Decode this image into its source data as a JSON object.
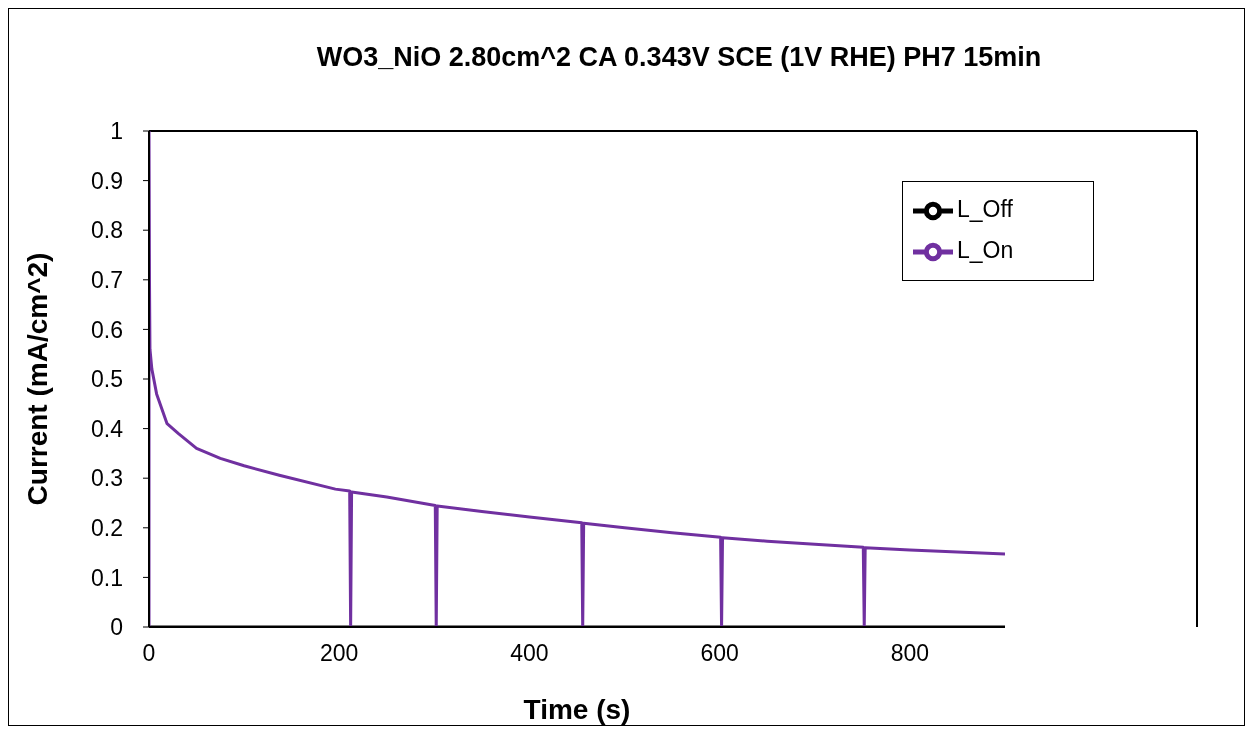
{
  "chart_data": {
    "type": "line",
    "title": "WO3_NiO 2.80cm^2 CA 0.343V SCE (1V RHE) PH7 15min",
    "xlabel": "Time (s)",
    "ylabel": "Current (mA/cm^2)",
    "xlim": [
      0,
      900
    ],
    "xticks": [
      0,
      200,
      400,
      600,
      800
    ],
    "ylim": [
      0,
      1
    ],
    "yticks": [
      0,
      0.1,
      0.2,
      0.3,
      0.4,
      0.5,
      0.6,
      0.7,
      0.8,
      0.9,
      1
    ],
    "grid": false,
    "legend": "top right",
    "marker": "none",
    "line_style": "solid",
    "series": [
      {
        "name": "L_Off",
        "color": "#000000",
        "x": [
          0,
          100,
          200,
          300,
          400,
          500,
          600,
          700,
          800,
          900
        ],
        "values": [
          0,
          0,
          0,
          0,
          0,
          0,
          0,
          0,
          0,
          0
        ]
      },
      {
        "name": "L_On",
        "color": "#7030a0",
        "x": [
          0,
          0,
          0.5,
          1,
          3,
          8,
          19,
          31,
          50,
          75,
          100,
          137,
          196,
          211,
          212,
          213,
          250,
          301,
          302,
          303,
          350,
          400,
          455,
          456,
          457,
          500,
          550,
          601,
          602,
          603,
          650,
          700,
          751,
          752,
          753,
          800,
          850,
          900
        ],
        "values": [
          0,
          1,
          0.7,
          0.56,
          0.52,
          0.47,
          0.41,
          0.39,
          0.36,
          0.34,
          0.325,
          0.306,
          0.278,
          0.274,
          0,
          0.272,
          0.262,
          0.245,
          0,
          0.244,
          0.233,
          0.222,
          0.21,
          0,
          0.209,
          0.2,
          0.19,
          0.181,
          0,
          0.18,
          0.173,
          0.167,
          0.161,
          0,
          0.16,
          0.155,
          0.151,
          0.147
        ]
      }
    ]
  }
}
